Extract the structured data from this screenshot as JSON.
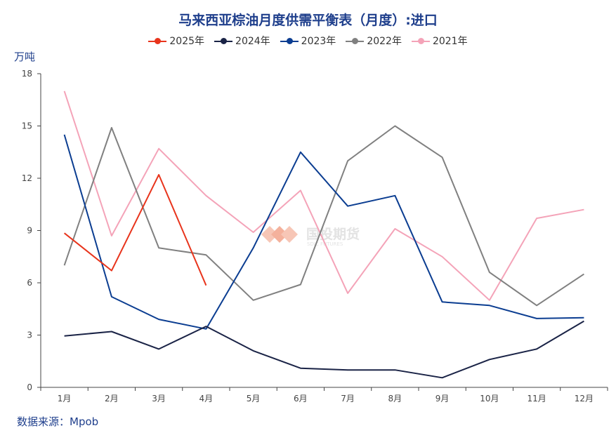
{
  "title": "马来西亚棕油月度供需平衡表（月度）:进口",
  "unit_label": "万吨",
  "source": "数据来源：Mpob",
  "watermark": {
    "main": "国投期货",
    "sub": "SDIC FUTURES"
  },
  "chart_data": {
    "type": "line",
    "title": "马来西亚棕油月度供需平衡表（月度）:进口",
    "ylabel": "万吨",
    "xlabel": "",
    "categories": [
      "1月",
      "2月",
      "3月",
      "4月",
      "5月",
      "6月",
      "7月",
      "8月",
      "9月",
      "10月",
      "11月",
      "12月"
    ],
    "ylim": [
      0,
      18
    ],
    "yticks": [
      0,
      3,
      6,
      9,
      12,
      15,
      18
    ],
    "grid": false,
    "legend_position": "top-center",
    "series": [
      {
        "name": "2025年",
        "color": "#e8341c",
        "values": [
          8.85,
          6.7,
          12.2,
          5.85,
          null,
          null,
          null,
          null,
          null,
          null,
          null,
          null
        ]
      },
      {
        "name": "2024年",
        "color": "#1a2346",
        "values": [
          2.95,
          3.2,
          2.2,
          3.5,
          2.1,
          1.1,
          1.0,
          1.0,
          0.55,
          1.6,
          2.2,
          3.8
        ]
      },
      {
        "name": "2023年",
        "color": "#0b3d91",
        "values": [
          14.5,
          5.2,
          3.9,
          3.35,
          8.0,
          13.5,
          10.4,
          11.0,
          4.9,
          4.7,
          3.95,
          4.0
        ]
      },
      {
        "name": "2022年",
        "color": "#808080",
        "values": [
          7.0,
          14.9,
          8.0,
          7.6,
          5.0,
          5.9,
          13.0,
          15.0,
          13.2,
          6.6,
          4.7,
          6.5
        ]
      },
      {
        "name": "2021年",
        "color": "#f4a3b8",
        "values": [
          17.0,
          8.7,
          13.7,
          11.0,
          8.9,
          11.3,
          5.4,
          9.1,
          7.5,
          5.0,
          9.7,
          10.2
        ]
      }
    ]
  }
}
